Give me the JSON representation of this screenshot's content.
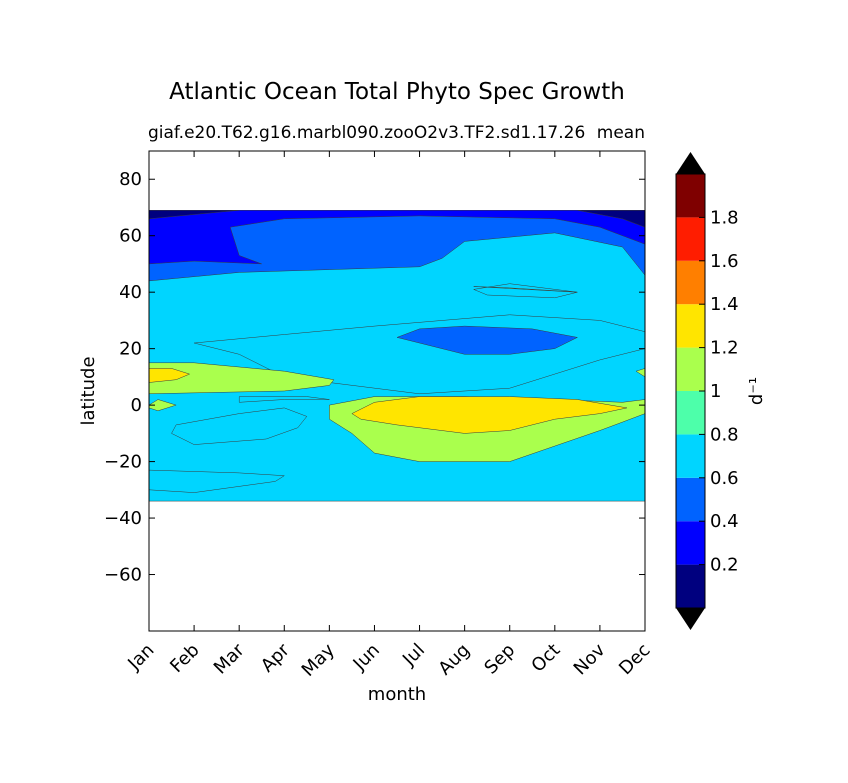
{
  "chart_data": {
    "type": "heatmap",
    "title": "Atlantic Ocean Total Phyto Spec Growth",
    "subtitle_left": "giaf.e20.T62.g16.marbl090.zooO2v3.TF2.sd1.17.26",
    "subtitle_right": "mean",
    "xlabel": "month",
    "ylabel": "latitude",
    "x_categories": [
      "Jan",
      "Feb",
      "Mar",
      "Apr",
      "May",
      "Jun",
      "Jul",
      "Aug",
      "Sep",
      "Oct",
      "Nov",
      "Dec"
    ],
    "xlim": [
      0,
      11
    ],
    "ylim": [
      -80,
      90
    ],
    "yticks": [
      80,
      60,
      40,
      20,
      0,
      -20,
      -40,
      -60
    ],
    "ytick_labels": [
      "80",
      "60",
      "40",
      "20",
      "0",
      "−20",
      "−40",
      "−60"
    ],
    "data_lat_range": [
      -34,
      69
    ],
    "colorbar": {
      "label": "d⁻¹",
      "levels": [
        0,
        0.2,
        0.4,
        0.6,
        0.8,
        1.0,
        1.2,
        1.4,
        1.6,
        1.8,
        2.0
      ],
      "tick_values": [
        0.2,
        0.4,
        0.6,
        0.8,
        1.0,
        1.2,
        1.4,
        1.6,
        1.8
      ],
      "tick_labels": [
        "0.2",
        "0.4",
        "0.6",
        "0.8",
        "1",
        "1.2",
        "1.4",
        "1.6",
        "1.8"
      ],
      "colors": [
        "#00007f",
        "#0000ff",
        "#0063ff",
        "#00d5ff",
        "#4dffaa",
        "#aaff4d",
        "#ffe500",
        "#ff7f00",
        "#ff1d00",
        "#7f0000"
      ],
      "extend": "both",
      "under_color": "#000000",
      "over_color": "#000000"
    },
    "regions": [
      {
        "level": 0.7,
        "points": [
          [
            0,
            -34
          ],
          [
            11,
            -34
          ],
          [
            11,
            69
          ],
          [
            0,
            69
          ]
        ]
      },
      {
        "level": 0.5,
        "points": [
          [
            0,
            44
          ],
          [
            2,
            47
          ],
          [
            4,
            48
          ],
          [
            6,
            49
          ],
          [
            6.5,
            52
          ],
          [
            7,
            58
          ],
          [
            9,
            61
          ],
          [
            10.5,
            56
          ],
          [
            11,
            46
          ],
          [
            11,
            69
          ],
          [
            0,
            69
          ]
        ]
      },
      {
        "level": 0.3,
        "points": [
          [
            0,
            50
          ],
          [
            1,
            51
          ],
          [
            2.5,
            50
          ],
          [
            2,
            53
          ],
          [
            1.8,
            63
          ],
          [
            3,
            66
          ],
          [
            6,
            67
          ],
          [
            9,
            66
          ],
          [
            10,
            63
          ],
          [
            11,
            57
          ],
          [
            11,
            69
          ],
          [
            0,
            69
          ]
        ]
      },
      {
        "level": 0.1,
        "points": [
          [
            9.5,
            69
          ],
          [
            11,
            69
          ],
          [
            11,
            63
          ],
          [
            10.5,
            66
          ]
        ]
      },
      {
        "level": 0.1,
        "points": [
          [
            0,
            69
          ],
          [
            2,
            69
          ],
          [
            1,
            67.5
          ],
          [
            0,
            66
          ]
        ]
      },
      {
        "level": 0.7,
        "points": [
          [
            7.2,
            41
          ],
          [
            8,
            43
          ],
          [
            9.5,
            40
          ],
          [
            9,
            38
          ],
          [
            7.5,
            39
          ]
        ]
      },
      {
        "level": 1.1,
        "points": [
          [
            7.2,
            42
          ],
          [
            9.5,
            40
          ],
          [
            8,
            41.5
          ]
        ]
      },
      {
        "level": 0.7,
        "points": [
          [
            1,
            22
          ],
          [
            3,
            25
          ],
          [
            5,
            28
          ],
          [
            8,
            32
          ],
          [
            10,
            30
          ],
          [
            11,
            26
          ],
          [
            11,
            20
          ],
          [
            10,
            16
          ],
          [
            8,
            6
          ],
          [
            6,
            4
          ],
          [
            4,
            8
          ],
          [
            3,
            10
          ],
          [
            2,
            18
          ]
        ]
      },
      {
        "level": 0.5,
        "points": [
          [
            5.5,
            24
          ],
          [
            6,
            27
          ],
          [
            7,
            28
          ],
          [
            8.5,
            27
          ],
          [
            9.5,
            24
          ],
          [
            9,
            20
          ],
          [
            8,
            18
          ],
          [
            7,
            18
          ],
          [
            6,
            22
          ]
        ]
      },
      {
        "level": 1.1,
        "points": [
          [
            0,
            4
          ],
          [
            3,
            5
          ],
          [
            4,
            7
          ],
          [
            4.1,
            9
          ],
          [
            3,
            12
          ],
          [
            1,
            15
          ],
          [
            0,
            15
          ]
        ]
      },
      {
        "level": 1.3,
        "points": [
          [
            0,
            8
          ],
          [
            0.6,
            9
          ],
          [
            0.9,
            11
          ],
          [
            0.5,
            13
          ],
          [
            0,
            13
          ]
        ]
      },
      {
        "level": 1.1,
        "points": [
          [
            11,
            10
          ],
          [
            10.8,
            12
          ],
          [
            11,
            13
          ]
        ]
      },
      {
        "level": 0.7,
        "points": [
          [
            0,
            -23
          ],
          [
            2,
            -24
          ],
          [
            3,
            -25
          ],
          [
            2.8,
            -27
          ],
          [
            1,
            -31
          ],
          [
            0,
            -30
          ]
        ]
      },
      {
        "level": 0.7,
        "points": [
          [
            0.6,
            -7
          ],
          [
            2,
            -3
          ],
          [
            3,
            -1
          ],
          [
            3.5,
            -4
          ],
          [
            3.3,
            -8
          ],
          [
            2.6,
            -12
          ],
          [
            1,
            -14
          ],
          [
            0.5,
            -10
          ]
        ]
      },
      {
        "level": 1.1,
        "points": [
          [
            4,
            0
          ],
          [
            5,
            3
          ],
          [
            7,
            3
          ],
          [
            9,
            2
          ],
          [
            10.5,
            1
          ],
          [
            11,
            2
          ],
          [
            11,
            -3
          ],
          [
            10.5,
            -6
          ],
          [
            10,
            -9
          ],
          [
            8,
            -20
          ],
          [
            6,
            -20
          ],
          [
            5,
            -17
          ],
          [
            4.5,
            -10
          ],
          [
            4,
            -5
          ]
        ]
      },
      {
        "level": 1.3,
        "points": [
          [
            4.5,
            -3
          ],
          [
            5,
            1
          ],
          [
            6,
            3
          ],
          [
            8,
            3
          ],
          [
            9.5,
            2
          ],
          [
            10.6,
            -1
          ],
          [
            10,
            -3
          ],
          [
            9,
            -5
          ],
          [
            8,
            -9
          ],
          [
            7,
            -10
          ],
          [
            5.5,
            -7
          ],
          [
            4.7,
            -5
          ]
        ]
      },
      {
        "level": 0.7,
        "points": [
          [
            2,
            1
          ],
          [
            3,
            2
          ],
          [
            4,
            2
          ],
          [
            3.5,
            3
          ],
          [
            2,
            3
          ]
        ]
      },
      {
        "level": 1.1,
        "points": [
          [
            0,
            0
          ],
          [
            0.2,
            2
          ],
          [
            0.6,
            0
          ],
          [
            0.2,
            -2
          ],
          [
            0,
            -1
          ]
        ]
      }
    ]
  }
}
